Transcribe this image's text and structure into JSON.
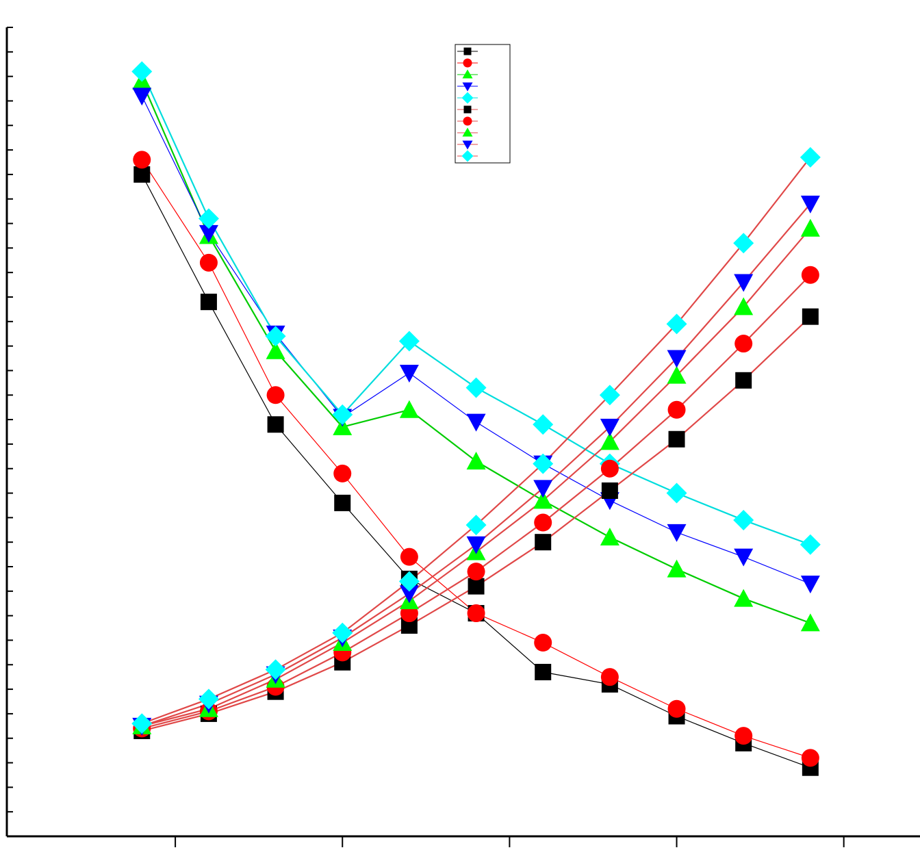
{
  "chart_data": {
    "type": "line",
    "x": [
      1,
      2,
      3,
      4,
      5,
      6,
      7,
      8,
      9,
      10,
      11
    ],
    "xlim": [
      -1.02,
      12.64
    ],
    "xticks": [
      1.5,
      4,
      6.5,
      9,
      11.5
    ],
    "ylim": [
      0,
      33
    ],
    "yticks": [
      1,
      2,
      3,
      4,
      5,
      6,
      7,
      8,
      9,
      10,
      11,
      12,
      13,
      14,
      15,
      16,
      17,
      18,
      19,
      20,
      21,
      22,
      23,
      24,
      25,
      26,
      27,
      28,
      29,
      30,
      31,
      32,
      33
    ],
    "grid": false,
    "series": [
      {
        "color": "#000000",
        "line_color": "#000000",
        "marker": "square",
        "values": [
          27.0,
          21.8,
          16.8,
          13.6,
          10.5,
          9.1,
          6.7,
          6.2,
          4.9,
          3.8,
          2.8
        ]
      },
      {
        "color": "#ff0000",
        "line_color": "#ff0000",
        "marker": "circle",
        "values": [
          27.6,
          23.4,
          18.0,
          14.8,
          11.4,
          9.1,
          7.9,
          6.5,
          5.2,
          4.1,
          3.2
        ]
      },
      {
        "color": "#00ff00",
        "line_color": "#00cc00",
        "marker": "triangle-up",
        "values": [
          30.8,
          24.5,
          19.8,
          16.7,
          17.4,
          15.3,
          13.7,
          12.2,
          10.9,
          9.7,
          8.7
        ]
      },
      {
        "color": "#0000ff",
        "line_color": "#0000ff",
        "marker": "triangle-down",
        "values": [
          30.2,
          24.6,
          20.5,
          17.1,
          18.9,
          16.9,
          15.2,
          13.7,
          12.4,
          11.4,
          10.3
        ]
      },
      {
        "color": "#00ffff",
        "line_color": "#00dddd",
        "marker": "diamond",
        "values": [
          31.2,
          25.2,
          20.4,
          17.2,
          20.2,
          18.3,
          16.8,
          15.2,
          14.0,
          12.9,
          11.9
        ]
      },
      {
        "color": "#000000",
        "line_color": "#e04848",
        "marker": "square",
        "values": [
          4.3,
          5.0,
          5.9,
          7.1,
          8.6,
          10.2,
          12.0,
          14.1,
          16.2,
          18.6,
          21.2
        ]
      },
      {
        "color": "#ff0000",
        "line_color": "#e04848",
        "marker": "circle",
        "values": [
          4.4,
          5.1,
          6.1,
          7.5,
          9.1,
          10.8,
          12.8,
          15.0,
          17.4,
          20.1,
          22.9
        ]
      },
      {
        "color": "#00ff00",
        "line_color": "#e04848",
        "marker": "triangle-up",
        "values": [
          4.5,
          5.2,
          6.4,
          7.9,
          9.6,
          11.6,
          13.7,
          16.1,
          18.8,
          21.6,
          24.8
        ]
      },
      {
        "color": "#0000ff",
        "line_color": "#e04848",
        "marker": "triangle-down",
        "values": [
          4.5,
          5.4,
          6.6,
          8.1,
          9.9,
          11.9,
          14.2,
          16.7,
          19.5,
          22.6,
          25.8
        ]
      },
      {
        "color": "#00ffff",
        "line_color": "#e04848",
        "marker": "diamond",
        "values": [
          4.6,
          5.6,
          6.8,
          8.3,
          10.4,
          12.7,
          15.2,
          18.0,
          20.9,
          24.2,
          27.7
        ]
      }
    ]
  }
}
